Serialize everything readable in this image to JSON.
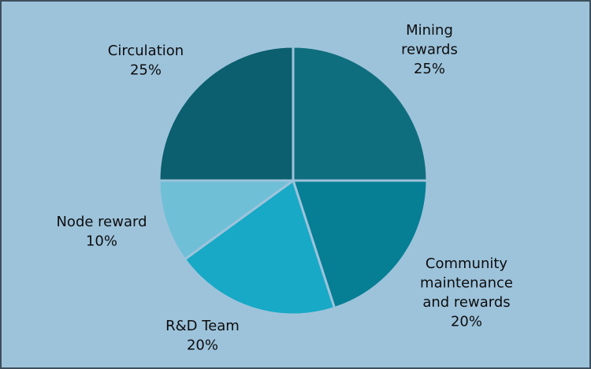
{
  "chart_data": {
    "type": "pie",
    "background": "#9dc3db",
    "separator_color": "#9dc3db",
    "slices": [
      {
        "name": "Mining rewards",
        "label_lines": [
          "Mining",
          "rewards"
        ],
        "value": 25,
        "value_label": "25%",
        "color": "#0f6e7e"
      },
      {
        "name": "Community maintenance and rewards",
        "label_lines": [
          "Community",
          "maintenance",
          "and rewards"
        ],
        "value": 20,
        "value_label": "20%",
        "color": "#067e94"
      },
      {
        "name": "R&D Team",
        "label_lines": [
          "R&D Team"
        ],
        "value": 20,
        "value_label": "20%",
        "color": "#17a9c6"
      },
      {
        "name": "Node reward",
        "label_lines": [
          "Node reward"
        ],
        "value": 10,
        "value_label": "10%",
        "color": "#6fbfd7"
      },
      {
        "name": "Circulation",
        "label_lines": [
          "Circulation"
        ],
        "value": 25,
        "value_label": "25%",
        "color": "#0b5f6f"
      }
    ]
  }
}
